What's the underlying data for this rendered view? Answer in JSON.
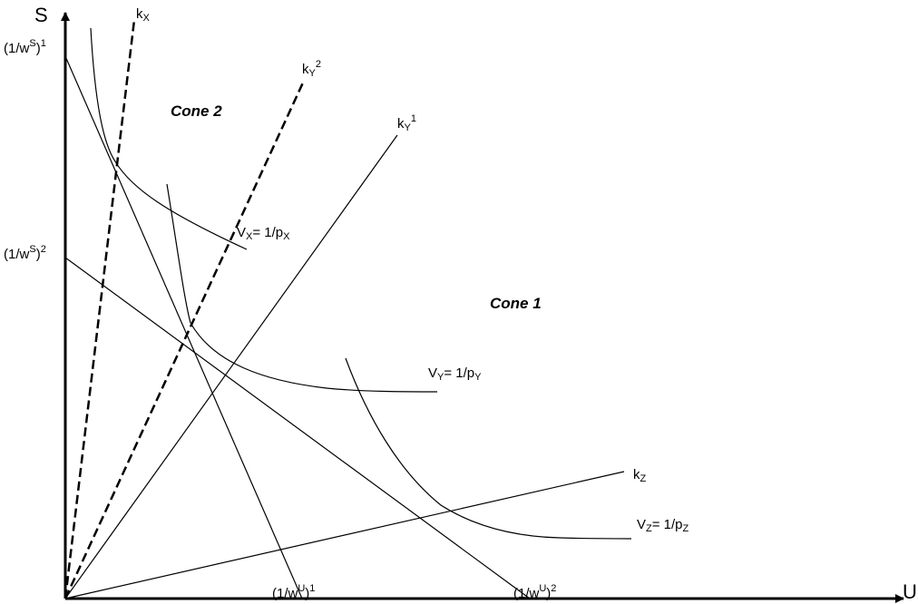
{
  "axes": {
    "y_label": "S",
    "x_label": "U"
  },
  "cones": {
    "cone1": "Cone 1",
    "cone2": "Cone 2"
  },
  "rays": {
    "kx": {
      "base": "k",
      "sub": "X"
    },
    "ky2": {
      "base": "k",
      "sub": "Y",
      "sup": "2"
    },
    "ky1": {
      "base": "k",
      "sub": "Y",
      "sup": "1"
    },
    "kz": {
      "base": "k",
      "sub": "Z"
    }
  },
  "isoquants": {
    "vx": {
      "v": "V",
      "vsub": "X",
      "eq": "= 1/p",
      "psub": "X"
    },
    "vy": {
      "v": "V",
      "vsub": "Y",
      "eq": "= 1/p",
      "psub": "Y"
    },
    "vz": {
      "v": "V",
      "vsub": "Z",
      "eq": "= 1/p",
      "psub": "Z"
    }
  },
  "intercepts": {
    "ws1": {
      "open": "(1/w",
      "sup": "S",
      "close": ")",
      "idx": "1"
    },
    "ws2": {
      "open": "(1/w",
      "sup": "S",
      "close": ")",
      "idx": "2"
    },
    "wu1": {
      "open": "(1/w",
      "sup": "U",
      "close": ")",
      "idx": "1"
    },
    "wu2": {
      "open": "(1/w",
      "sup": "U",
      "close": ")",
      "idx": "2"
    }
  },
  "colors": {
    "ink": "#000000"
  }
}
